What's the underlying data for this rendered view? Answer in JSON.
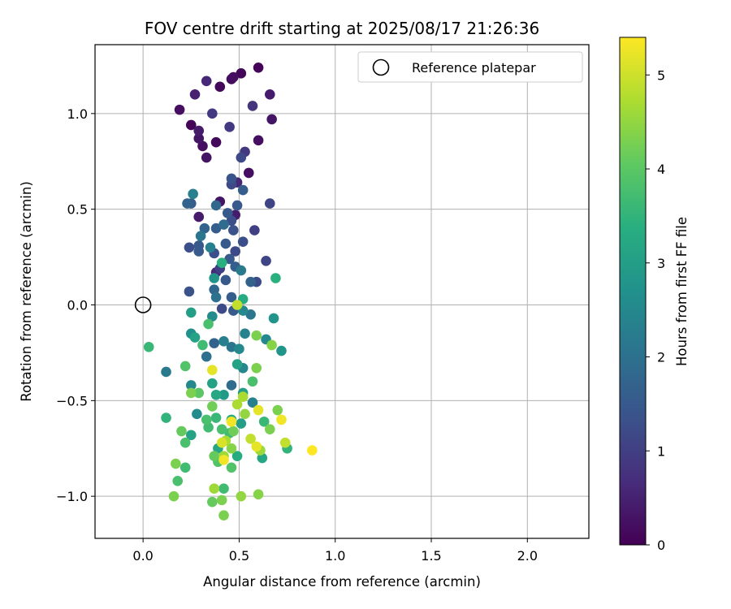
{
  "chart_data": {
    "type": "scatter",
    "title": "FOV centre drift starting at 2025/08/17 21:26:36",
    "xlabel": "Angular distance from reference (arcmin)",
    "ylabel": "Rotation from reference (arcmin)",
    "xlim": [
      -0.25,
      2.32
    ],
    "ylim": [
      -1.22,
      1.36
    ],
    "xticks": [
      0.0,
      0.5,
      1.0,
      1.5,
      2.0
    ],
    "xtick_labels": [
      "0.0",
      "0.5",
      "1.0",
      "1.5",
      "2.0"
    ],
    "yticks": [
      -1.0,
      -0.5,
      0.0,
      0.5,
      1.0
    ],
    "ytick_labels": [
      "−1.0",
      "−0.5",
      "0.0",
      "0.5",
      "1.0"
    ],
    "grid": true,
    "legend": {
      "placement": "top-right",
      "entries": [
        "Reference platepar"
      ]
    },
    "reference_point": {
      "x": 0.0,
      "y": 0.0,
      "label": "Reference platepar"
    },
    "colorbar": {
      "label": "Hours from first FF file",
      "colormap": "viridis",
      "range": [
        0,
        5.4
      ],
      "ticks": [
        0,
        1,
        2,
        3,
        4,
        5
      ],
      "tick_labels": [
        "0",
        "1",
        "2",
        "3",
        "4",
        "5"
      ]
    },
    "points": [
      [
        0.6,
        1.24,
        0.05
      ],
      [
        0.51,
        1.21,
        0.1
      ],
      [
        0.46,
        1.18,
        0.15
      ],
      [
        0.33,
        1.17,
        0.6
      ],
      [
        0.47,
        1.19,
        0.2
      ],
      [
        0.4,
        1.14,
        0.1
      ],
      [
        0.27,
        1.1,
        0.5
      ],
      [
        0.66,
        1.1,
        0.4
      ],
      [
        0.19,
        1.02,
        0.2
      ],
      [
        0.57,
        1.04,
        0.8
      ],
      [
        0.36,
        1.0,
        0.9
      ],
      [
        0.67,
        0.97,
        0.3
      ],
      [
        0.25,
        0.94,
        0.05
      ],
      [
        0.45,
        0.93,
        0.9
      ],
      [
        0.29,
        0.91,
        0.4
      ],
      [
        0.29,
        0.87,
        0.3
      ],
      [
        0.38,
        0.85,
        0.1
      ],
      [
        0.6,
        0.86,
        0.2
      ],
      [
        0.31,
        0.83,
        0.2
      ],
      [
        0.53,
        0.8,
        0.9
      ],
      [
        0.51,
        0.77,
        1.2
      ],
      [
        0.33,
        0.77,
        0.3
      ],
      [
        0.55,
        0.69,
        0.2
      ],
      [
        0.49,
        0.64,
        0.6
      ],
      [
        0.46,
        0.66,
        1.4
      ],
      [
        0.46,
        0.63,
        1.2
      ],
      [
        0.52,
        0.6,
        1.6
      ],
      [
        0.26,
        0.58,
        2.3
      ],
      [
        0.23,
        0.53,
        1.7
      ],
      [
        0.25,
        0.53,
        1.6
      ],
      [
        0.38,
        0.52,
        1.8
      ],
      [
        0.4,
        0.54,
        0.3
      ],
      [
        0.49,
        0.52,
        1.5
      ],
      [
        0.66,
        0.53,
        1.1
      ],
      [
        0.29,
        0.46,
        0.4
      ],
      [
        0.44,
        0.48,
        1.5
      ],
      [
        0.48,
        0.47,
        0.4
      ],
      [
        0.46,
        0.44,
        1.3
      ],
      [
        0.38,
        0.4,
        1.6
      ],
      [
        0.42,
        0.42,
        1.9
      ],
      [
        0.47,
        0.39,
        1.4
      ],
      [
        0.58,
        0.39,
        1.0
      ],
      [
        0.3,
        0.36,
        2.1
      ],
      [
        0.32,
        0.4,
        1.7
      ],
      [
        0.29,
        0.31,
        1.5
      ],
      [
        0.29,
        0.28,
        1.5
      ],
      [
        0.35,
        0.3,
        2.3
      ],
      [
        0.43,
        0.32,
        1.5
      ],
      [
        0.52,
        0.33,
        1.3
      ],
      [
        0.24,
        0.3,
        1.3
      ],
      [
        0.37,
        0.27,
        1.3
      ],
      [
        0.48,
        0.28,
        1.2
      ],
      [
        0.41,
        0.22,
        3.4
      ],
      [
        0.45,
        0.24,
        1.5
      ],
      [
        0.48,
        0.2,
        1.6
      ],
      [
        0.64,
        0.23,
        1.1
      ],
      [
        0.38,
        0.17,
        0.6
      ],
      [
        0.4,
        0.19,
        1.0
      ],
      [
        0.51,
        0.18,
        2.2
      ],
      [
        0.43,
        0.13,
        1.5
      ],
      [
        0.37,
        0.14,
        2.8
      ],
      [
        0.56,
        0.12,
        1.7
      ],
      [
        0.59,
        0.12,
        1.2
      ],
      [
        0.69,
        0.14,
        3.4
      ],
      [
        0.24,
        0.07,
        1.4
      ],
      [
        0.37,
        0.08,
        1.8
      ],
      [
        0.38,
        0.04,
        2.0
      ],
      [
        0.46,
        0.04,
        1.6
      ],
      [
        0.52,
        0.03,
        3.3
      ],
      [
        0.49,
        0.0,
        4.9
      ],
      [
        0.41,
        -0.02,
        1.2
      ],
      [
        0.47,
        -0.03,
        1.5
      ],
      [
        0.52,
        -0.03,
        2.5
      ],
      [
        0.25,
        -0.04,
        3.0
      ],
      [
        0.36,
        -0.06,
        2.6
      ],
      [
        0.56,
        -0.05,
        2.1
      ],
      [
        0.68,
        -0.07,
        2.8
      ],
      [
        0.34,
        -0.1,
        3.8
      ],
      [
        0.25,
        -0.15,
        2.7
      ],
      [
        0.27,
        -0.17,
        3.1
      ],
      [
        0.42,
        -0.19,
        2.3
      ],
      [
        0.53,
        -0.15,
        2.4
      ],
      [
        0.59,
        -0.16,
        4.3
      ],
      [
        0.64,
        -0.18,
        2.5
      ],
      [
        0.31,
        -0.21,
        3.7
      ],
      [
        0.37,
        -0.2,
        1.7
      ],
      [
        0.46,
        -0.22,
        2.1
      ],
      [
        0.5,
        -0.23,
        2.5
      ],
      [
        0.67,
        -0.21,
        4.4
      ],
      [
        0.72,
        -0.24,
        2.8
      ],
      [
        0.03,
        -0.22,
        3.6
      ],
      [
        0.33,
        -0.27,
        2.0
      ],
      [
        0.49,
        -0.31,
        3.1
      ],
      [
        0.52,
        -0.33,
        2.5
      ],
      [
        0.59,
        -0.33,
        4.3
      ],
      [
        0.22,
        -0.32,
        3.9
      ],
      [
        0.36,
        -0.34,
        5.2
      ],
      [
        0.12,
        -0.35,
        2.2
      ],
      [
        0.25,
        -0.42,
        2.5
      ],
      [
        0.36,
        -0.41,
        3.1
      ],
      [
        0.46,
        -0.42,
        1.9
      ],
      [
        0.57,
        -0.4,
        3.8
      ],
      [
        0.42,
        -0.47,
        2.9
      ],
      [
        0.29,
        -0.46,
        4.0
      ],
      [
        0.25,
        -0.46,
        4.3
      ],
      [
        0.38,
        -0.47,
        3.2
      ],
      [
        0.52,
        -0.46,
        3.0
      ],
      [
        0.52,
        -0.48,
        4.7
      ],
      [
        0.49,
        -0.52,
        4.7
      ],
      [
        0.57,
        -0.51,
        2.3
      ],
      [
        0.36,
        -0.53,
        4.2
      ],
      [
        0.6,
        -0.55,
        5.2
      ],
      [
        0.7,
        -0.55,
        4.3
      ],
      [
        0.12,
        -0.59,
        3.5
      ],
      [
        0.28,
        -0.57,
        2.6
      ],
      [
        0.38,
        -0.59,
        3.6
      ],
      [
        0.33,
        -0.6,
        3.8
      ],
      [
        0.46,
        -0.6,
        3.3
      ],
      [
        0.53,
        -0.57,
        4.5
      ],
      [
        0.72,
        -0.6,
        5.3
      ],
      [
        0.46,
        -0.61,
        5.3
      ],
      [
        0.51,
        -0.62,
        3.0
      ],
      [
        0.63,
        -0.61,
        3.6
      ],
      [
        0.34,
        -0.64,
        3.7
      ],
      [
        0.41,
        -0.65,
        3.8
      ],
      [
        0.2,
        -0.66,
        4.1
      ],
      [
        0.25,
        -0.68,
        3.1
      ],
      [
        0.45,
        -0.67,
        3.7
      ],
      [
        0.47,
        -0.66,
        4.2
      ],
      [
        0.66,
        -0.65,
        4.3
      ],
      [
        0.22,
        -0.72,
        3.8
      ],
      [
        0.41,
        -0.72,
        5.1
      ],
      [
        0.43,
        -0.71,
        4.7
      ],
      [
        0.56,
        -0.7,
        4.9
      ],
      [
        0.74,
        -0.72,
        4.9
      ],
      [
        0.39,
        -0.75,
        3.2
      ],
      [
        0.46,
        -0.75,
        4.4
      ],
      [
        0.59,
        -0.74,
        5.2
      ],
      [
        0.75,
        -0.75,
        3.5
      ],
      [
        0.88,
        -0.76,
        5.4
      ],
      [
        0.61,
        -0.76,
        4.6
      ],
      [
        0.37,
        -0.79,
        4.1
      ],
      [
        0.42,
        -0.79,
        4.6
      ],
      [
        0.49,
        -0.79,
        3.3
      ],
      [
        0.39,
        -0.82,
        3.9
      ],
      [
        0.42,
        -0.81,
        5.3
      ],
      [
        0.62,
        -0.8,
        3.2
      ],
      [
        0.17,
        -0.83,
        4.3
      ],
      [
        0.22,
        -0.85,
        3.7
      ],
      [
        0.46,
        -0.85,
        3.9
      ],
      [
        0.18,
        -0.92,
        3.8
      ],
      [
        0.37,
        -0.96,
        4.6
      ],
      [
        0.42,
        -0.96,
        3.7
      ],
      [
        0.16,
        -1.0,
        4.3
      ],
      [
        0.51,
        -1.0,
        4.5
      ],
      [
        0.6,
        -0.99,
        4.4
      ],
      [
        0.36,
        -1.03,
        4.1
      ],
      [
        0.41,
        -1.02,
        4.3
      ],
      [
        0.42,
        -1.1,
        4.3
      ]
    ]
  }
}
